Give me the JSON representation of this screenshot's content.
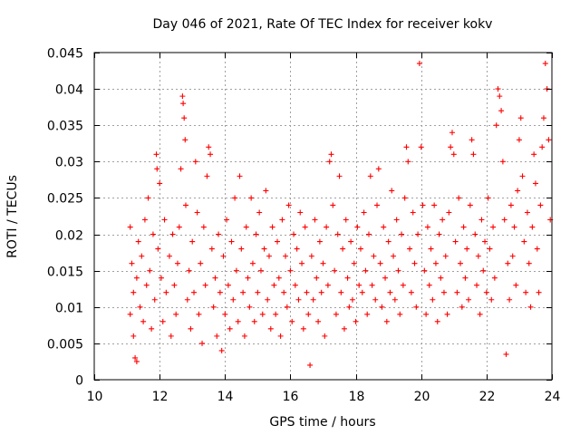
{
  "chart_data": {
    "type": "scatter",
    "title": "Day 046 of 2021, Rate Of TEC Index for receiver kokv",
    "xlabel": "GPS time / hours",
    "ylabel": "ROTI / TECUs",
    "xlim": [
      10,
      24
    ],
    "ylim": [
      0,
      0.045
    ],
    "x_ticks": [
      10,
      12,
      14,
      16,
      18,
      20,
      22,
      24
    ],
    "x_tick_labels": [
      "10",
      "12",
      "14",
      "16",
      "18",
      "20",
      "22",
      "24"
    ],
    "y_ticks": [
      0,
      0.005,
      0.01,
      0.015,
      0.02,
      0.025,
      0.03,
      0.035,
      0.04,
      0.045
    ],
    "y_tick_labels": [
      "0",
      "0.005",
      "0.01",
      "0.015",
      "0.02",
      "0.025",
      "0.03",
      "0.035",
      "0.04",
      "0.045"
    ],
    "grid": true,
    "marker": "plus",
    "color": "#ff0000",
    "series": [
      {
        "points": [
          [
            11.1,
            0.021
          ],
          [
            11.1,
            0.009
          ],
          [
            11.15,
            0.016
          ],
          [
            11.2,
            0.012
          ],
          [
            11.2,
            0.006
          ],
          [
            11.25,
            0.003
          ],
          [
            11.3,
            0.0025
          ],
          [
            11.3,
            0.014
          ],
          [
            11.35,
            0.019
          ],
          [
            11.4,
            0.01
          ],
          [
            11.45,
            0.017
          ],
          [
            11.5,
            0.008
          ],
          [
            11.55,
            0.022
          ],
          [
            11.6,
            0.013
          ],
          [
            11.65,
            0.025
          ],
          [
            11.7,
            0.015
          ],
          [
            11.75,
            0.007
          ],
          [
            11.8,
            0.02
          ],
          [
            11.85,
            0.011
          ],
          [
            11.9,
            0.031
          ],
          [
            11.92,
            0.029
          ],
          [
            11.95,
            0.018
          ],
          [
            12.0,
            0.027
          ],
          [
            12.05,
            0.014
          ],
          [
            12.1,
            0.008
          ],
          [
            12.15,
            0.022
          ],
          [
            12.2,
            0.012
          ],
          [
            12.3,
            0.017
          ],
          [
            12.35,
            0.006
          ],
          [
            12.4,
            0.02
          ],
          [
            12.45,
            0.013
          ],
          [
            12.5,
            0.009
          ],
          [
            12.55,
            0.016
          ],
          [
            12.6,
            0.021
          ],
          [
            12.65,
            0.029
          ],
          [
            12.7,
            0.039
          ],
          [
            12.72,
            0.038
          ],
          [
            12.75,
            0.036
          ],
          [
            12.78,
            0.033
          ],
          [
            12.8,
            0.024
          ],
          [
            12.85,
            0.011
          ],
          [
            12.9,
            0.015
          ],
          [
            12.95,
            0.007
          ],
          [
            13.0,
            0.019
          ],
          [
            13.05,
            0.012
          ],
          [
            13.1,
            0.03
          ],
          [
            13.15,
            0.023
          ],
          [
            13.2,
            0.009
          ],
          [
            13.25,
            0.016
          ],
          [
            13.3,
            0.005
          ],
          [
            13.35,
            0.021
          ],
          [
            13.4,
            0.013
          ],
          [
            13.45,
            0.028
          ],
          [
            13.5,
            0.032
          ],
          [
            13.55,
            0.031
          ],
          [
            13.6,
            0.018
          ],
          [
            13.65,
            0.01
          ],
          [
            13.7,
            0.014
          ],
          [
            13.75,
            0.006
          ],
          [
            13.8,
            0.02
          ],
          [
            13.85,
            0.012
          ],
          [
            13.9,
            0.004
          ],
          [
            13.95,
            0.017
          ],
          [
            14.0,
            0.009
          ],
          [
            14.05,
            0.022
          ],
          [
            14.1,
            0.013
          ],
          [
            14.15,
            0.007
          ],
          [
            14.2,
            0.019
          ],
          [
            14.25,
            0.011
          ],
          [
            14.3,
            0.025
          ],
          [
            14.35,
            0.015
          ],
          [
            14.4,
            0.008
          ],
          [
            14.45,
            0.028
          ],
          [
            14.5,
            0.018
          ],
          [
            14.55,
            0.012
          ],
          [
            14.6,
            0.006
          ],
          [
            14.65,
            0.021
          ],
          [
            14.7,
            0.014
          ],
          [
            14.75,
            0.01
          ],
          [
            14.8,
            0.025
          ],
          [
            14.85,
            0.016
          ],
          [
            14.9,
            0.008
          ],
          [
            14.95,
            0.02
          ],
          [
            15.0,
            0.012
          ],
          [
            15.05,
            0.023
          ],
          [
            15.1,
            0.015
          ],
          [
            15.15,
            0.009
          ],
          [
            15.2,
            0.018
          ],
          [
            15.25,
            0.026
          ],
          [
            15.3,
            0.011
          ],
          [
            15.35,
            0.017
          ],
          [
            15.4,
            0.007
          ],
          [
            15.45,
            0.021
          ],
          [
            15.5,
            0.013
          ],
          [
            15.55,
            0.009
          ],
          [
            15.6,
            0.019
          ],
          [
            15.65,
            0.014
          ],
          [
            15.7,
            0.006
          ],
          [
            15.75,
            0.022
          ],
          [
            15.8,
            0.012
          ],
          [
            15.85,
            0.017
          ],
          [
            15.9,
            0.01
          ],
          [
            15.95,
            0.024
          ],
          [
            16.0,
            0.015
          ],
          [
            16.05,
            0.008
          ],
          [
            16.1,
            0.02
          ],
          [
            16.15,
            0.013
          ],
          [
            16.2,
            0.018
          ],
          [
            16.25,
            0.011
          ],
          [
            16.3,
            0.023
          ],
          [
            16.35,
            0.016
          ],
          [
            16.4,
            0.007
          ],
          [
            16.45,
            0.021
          ],
          [
            16.5,
            0.012
          ],
          [
            16.55,
            0.009
          ],
          [
            16.6,
            0.002
          ],
          [
            16.65,
            0.017
          ],
          [
            16.7,
            0.011
          ],
          [
            16.75,
            0.022
          ],
          [
            16.8,
            0.014
          ],
          [
            16.85,
            0.008
          ],
          [
            16.9,
            0.019
          ],
          [
            16.95,
            0.012
          ],
          [
            17.0,
            0.016
          ],
          [
            17.05,
            0.006
          ],
          [
            17.1,
            0.021
          ],
          [
            17.15,
            0.013
          ],
          [
            17.2,
            0.03
          ],
          [
            17.25,
            0.031
          ],
          [
            17.3,
            0.024
          ],
          [
            17.35,
            0.015
          ],
          [
            17.4,
            0.009
          ],
          [
            17.45,
            0.02
          ],
          [
            17.5,
            0.028
          ],
          [
            17.55,
            0.012
          ],
          [
            17.6,
            0.018
          ],
          [
            17.65,
            0.007
          ],
          [
            17.7,
            0.022
          ],
          [
            17.75,
            0.014
          ],
          [
            17.8,
            0.01
          ],
          [
            17.85,
            0.019
          ],
          [
            17.9,
            0.011
          ],
          [
            17.95,
            0.016
          ],
          [
            18.0,
            0.008
          ],
          [
            18.05,
            0.021
          ],
          [
            18.1,
            0.013
          ],
          [
            18.15,
            0.018
          ],
          [
            18.2,
            0.012
          ],
          [
            18.25,
            0.023
          ],
          [
            18.3,
            0.015
          ],
          [
            18.35,
            0.009
          ],
          [
            18.4,
            0.02
          ],
          [
            18.45,
            0.028
          ],
          [
            18.5,
            0.013
          ],
          [
            18.55,
            0.017
          ],
          [
            18.6,
            0.011
          ],
          [
            18.65,
            0.024
          ],
          [
            18.7,
            0.029
          ],
          [
            18.75,
            0.016
          ],
          [
            18.8,
            0.01
          ],
          [
            18.85,
            0.021
          ],
          [
            18.9,
            0.014
          ],
          [
            18.95,
            0.008
          ],
          [
            19.0,
            0.019
          ],
          [
            19.05,
            0.012
          ],
          [
            19.1,
            0.026
          ],
          [
            19.15,
            0.017
          ],
          [
            19.2,
            0.011
          ],
          [
            19.25,
            0.022
          ],
          [
            19.3,
            0.015
          ],
          [
            19.35,
            0.009
          ],
          [
            19.4,
            0.02
          ],
          [
            19.45,
            0.013
          ],
          [
            19.5,
            0.025
          ],
          [
            19.55,
            0.032
          ],
          [
            19.6,
            0.03
          ],
          [
            19.65,
            0.018
          ],
          [
            19.7,
            0.012
          ],
          [
            19.75,
            0.023
          ],
          [
            19.8,
            0.016
          ],
          [
            19.85,
            0.01
          ],
          [
            19.9,
            0.02
          ],
          [
            19.95,
            0.0435
          ],
          [
            20.0,
            0.032
          ],
          [
            20.05,
            0.024
          ],
          [
            20.1,
            0.015
          ],
          [
            20.15,
            0.009
          ],
          [
            20.2,
            0.021
          ],
          [
            20.25,
            0.013
          ],
          [
            20.3,
            0.018
          ],
          [
            20.35,
            0.011
          ],
          [
            20.4,
            0.024
          ],
          [
            20.45,
            0.016
          ],
          [
            20.5,
            0.008
          ],
          [
            20.55,
            0.02
          ],
          [
            20.6,
            0.014
          ],
          [
            20.65,
            0.022
          ],
          [
            20.7,
            0.012
          ],
          [
            20.75,
            0.017
          ],
          [
            20.8,
            0.009
          ],
          [
            20.85,
            0.023
          ],
          [
            20.9,
            0.032
          ],
          [
            20.95,
            0.034
          ],
          [
            21.0,
            0.031
          ],
          [
            21.05,
            0.019
          ],
          [
            21.1,
            0.012
          ],
          [
            21.15,
            0.025
          ],
          [
            21.2,
            0.016
          ],
          [
            21.25,
            0.01
          ],
          [
            21.3,
            0.021
          ],
          [
            21.35,
            0.014
          ],
          [
            21.4,
            0.018
          ],
          [
            21.45,
            0.011
          ],
          [
            21.5,
            0.024
          ],
          [
            21.55,
            0.033
          ],
          [
            21.6,
            0.031
          ],
          [
            21.65,
            0.02
          ],
          [
            21.7,
            0.013
          ],
          [
            21.75,
            0.017
          ],
          [
            21.8,
            0.009
          ],
          [
            21.85,
            0.022
          ],
          [
            21.9,
            0.015
          ],
          [
            21.95,
            0.019
          ],
          [
            22.0,
            0.012
          ],
          [
            22.05,
            0.025
          ],
          [
            22.1,
            0.018
          ],
          [
            22.15,
            0.011
          ],
          [
            22.2,
            0.021
          ],
          [
            22.25,
            0.014
          ],
          [
            22.3,
            0.035
          ],
          [
            22.35,
            0.04
          ],
          [
            22.4,
            0.039
          ],
          [
            22.45,
            0.037
          ],
          [
            22.5,
            0.03
          ],
          [
            22.55,
            0.022
          ],
          [
            22.6,
            0.0035
          ],
          [
            22.65,
            0.016
          ],
          [
            22.7,
            0.011
          ],
          [
            22.75,
            0.024
          ],
          [
            22.8,
            0.017
          ],
          [
            22.85,
            0.021
          ],
          [
            22.9,
            0.013
          ],
          [
            22.95,
            0.026
          ],
          [
            23.0,
            0.033
          ],
          [
            23.05,
            0.036
          ],
          [
            23.1,
            0.028
          ],
          [
            23.15,
            0.019
          ],
          [
            23.2,
            0.012
          ],
          [
            23.25,
            0.023
          ],
          [
            23.3,
            0.016
          ],
          [
            23.35,
            0.01
          ],
          [
            23.4,
            0.021
          ],
          [
            23.45,
            0.031
          ],
          [
            23.5,
            0.027
          ],
          [
            23.55,
            0.018
          ],
          [
            23.6,
            0.012
          ],
          [
            23.65,
            0.024
          ],
          [
            23.7,
            0.032
          ],
          [
            23.75,
            0.036
          ],
          [
            23.8,
            0.0435
          ],
          [
            23.85,
            0.04
          ],
          [
            23.9,
            0.033
          ],
          [
            23.95,
            0.022
          ]
        ]
      }
    ]
  }
}
